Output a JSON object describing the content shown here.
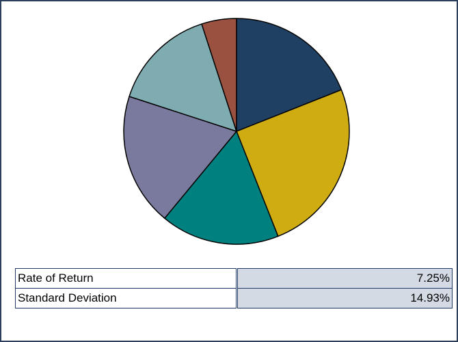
{
  "chart_data": {
    "type": "pie",
    "values": [
      19,
      25,
      17,
      19,
      15,
      5
    ],
    "colors": [
      "#1f3f63",
      "#cfad12",
      "#00807f",
      "#7a7a9e",
      "#7eacb1",
      "#9a5140"
    ]
  },
  "table": {
    "rows": [
      [
        "Rate of Return",
        "7.25%"
      ],
      [
        "Standard Deviation",
        "14.93%"
      ]
    ]
  }
}
